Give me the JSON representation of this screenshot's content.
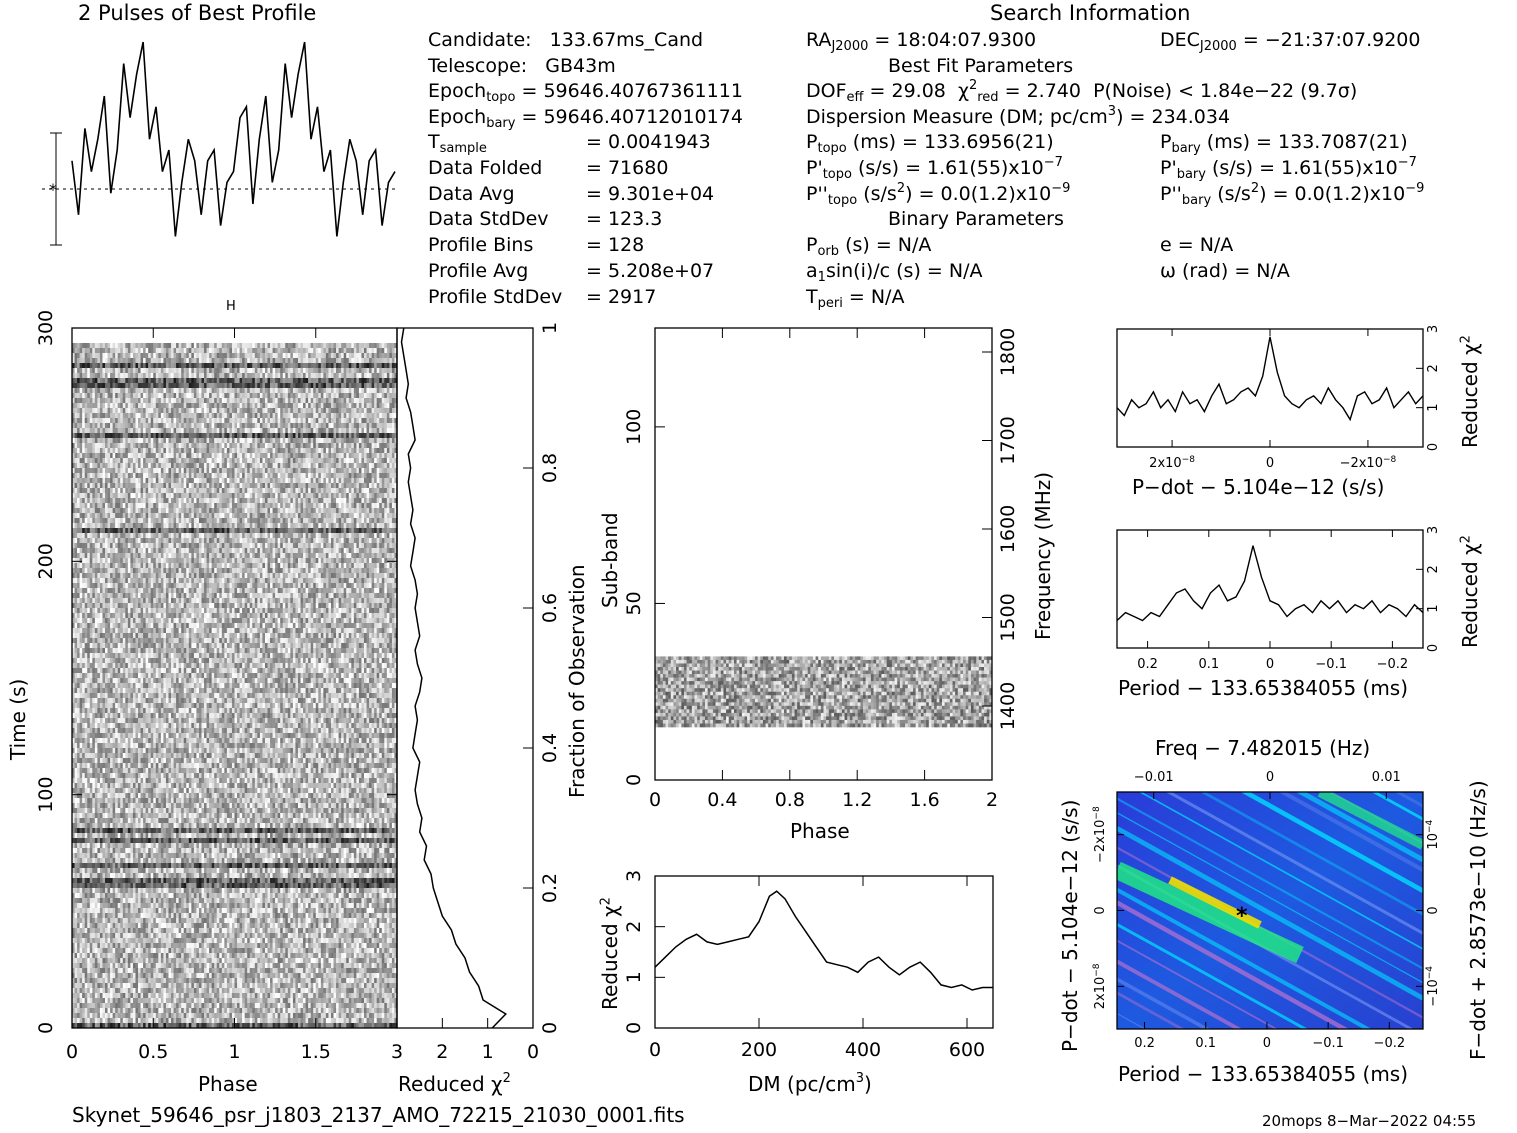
{
  "header": {
    "profile_title": "2 Pulses of Best Profile",
    "search_title": "Search Information",
    "best_fit_title": "Best Fit Parameters",
    "binary_title": "Binary Parameters"
  },
  "info_left": [
    {
      "label": "Candidate:",
      "value": "133.67ms_Cand"
    },
    {
      "label": "Telescope:",
      "value": "GB43m"
    },
    {
      "label": "Epoch",
      "sub": "topo",
      "value": "= 59646.40767361111"
    },
    {
      "label": "Epoch",
      "sub": "bary",
      "value": "= 59646.40712010174"
    },
    {
      "label": "T",
      "sub": "sample",
      "value": "=   0.0041943"
    },
    {
      "label": "Data Folded",
      "value": "=   71680"
    },
    {
      "label": "Data Avg",
      "value": "=   9.301e+04"
    },
    {
      "label": "Data StdDev",
      "value": "=   123.3"
    },
    {
      "label": "Profile Bins",
      "value": "=   128"
    },
    {
      "label": "Profile Avg",
      "value": "=   5.208e+07"
    },
    {
      "label": "Profile StdDev",
      "value": "=   2917"
    }
  ],
  "info_mid": {
    "ra": "RA",
    "ra_sub": "J2000",
    "ra_value": "= 18:04:07.9300",
    "dec": "DEC",
    "dec_sub": "J2000",
    "dec_value": "= −21:37:07.9200",
    "dof": "DOF",
    "dof_sub": "eff",
    "dof_value": "= 29.08",
    "chi": "χ",
    "chi_sup": "2",
    "chi_sub": "red",
    "chi_value": "= 2.740",
    "pnoise": "P(Noise) < 1.84e−22   (9.7σ)",
    "dm_line": "Dispersion Measure (DM; pc/cm",
    "dm_sup": "3",
    "dm_value": ") = 234.034",
    "ptopo": "P",
    "ptopo_sub": "topo",
    "ptopo_value": "(ms) =   133.6956(21)",
    "pbary": "P",
    "pbary_sub": "bary",
    "pbary_value": "(ms) =   133.7087(21)",
    "pdtopo": "P'",
    "pdtopo_sub": "topo",
    "pdtopo_value": "(s/s) =   1.61(55)x10",
    "pdtopo_exp": "−7",
    "pdbary": "P'",
    "pdbary_sub": "bary",
    "pdbary_value": "(s/s) =   1.61(55)x10",
    "pdbary_exp": "−7",
    "pddtopo": "P''",
    "pddtopo_sub": "topo",
    "pddtopo_value": "(s/s",
    "pddtopo_tail": ") = 0.0(1.2)x10",
    "pddtopo_exp": "−9",
    "pddbary": "P''",
    "pddbary_sub": "bary",
    "pddbary_value": "(s/s",
    "pddbary_tail": ") = 0.0(1.2)x10",
    "pddbary_exp": "−9",
    "porb": "P",
    "porb_sub": "orb",
    "porb_value": "(s) = N/A",
    "ecc": "e = N/A",
    "a1": "a",
    "a1_sub": "1",
    "a1_value": "sin(i)/c (s) = N/A",
    "omega": "ω (rad) = N/A",
    "tperi": "T",
    "tperi_sub": "peri",
    "tperi_value": "= N/A",
    "sq": "2"
  },
  "footer": {
    "filename": "Skynet_59646_psr_j1803_2137_AMO_72215_21030_0001.fits",
    "stamp": "20mops   8−Mar−2022 04:55"
  },
  "colors": {
    "ink": "#000000",
    "bg": "#ffffff",
    "cmap_low": "#3030c0",
    "cmap_mid": "#00e0ff",
    "cmap_hi": "#f0e000"
  },
  "chart_data": [
    {
      "type": "line",
      "name_key": "profile",
      "title": "2 Pulses of Best Profile",
      "xlim": [
        0,
        2
      ],
      "x": [
        0.0,
        0.04,
        0.08,
        0.12,
        0.16,
        0.2,
        0.24,
        0.28,
        0.32,
        0.36,
        0.4,
        0.44,
        0.48,
        0.52,
        0.56,
        0.6,
        0.64,
        0.68,
        0.72,
        0.76,
        0.8,
        0.84,
        0.88,
        0.92,
        0.96,
        1.0,
        1.04,
        1.08,
        1.12,
        1.16,
        1.2,
        1.24,
        1.28,
        1.32,
        1.36,
        1.4,
        1.44,
        1.48,
        1.52,
        1.56,
        1.6,
        1.64,
        1.68,
        1.72,
        1.76,
        1.8,
        1.84,
        1.88,
        1.92,
        1.96,
        2.0
      ],
      "y": [
        0.45,
        0.2,
        0.6,
        0.4,
        0.55,
        0.75,
        0.3,
        0.5,
        0.9,
        0.65,
        0.85,
        1.0,
        0.55,
        0.7,
        0.4,
        0.5,
        0.1,
        0.35,
        0.55,
        0.45,
        0.2,
        0.45,
        0.5,
        0.15,
        0.35,
        0.4,
        0.65,
        0.7,
        0.25,
        0.55,
        0.75,
        0.35,
        0.5,
        0.9,
        0.65,
        0.85,
        1.0,
        0.55,
        0.7,
        0.4,
        0.5,
        0.1,
        0.35,
        0.55,
        0.45,
        0.2,
        0.45,
        0.5,
        0.15,
        0.35,
        0.4
      ]
    },
    {
      "type": "heatmap",
      "name_key": "time_phase",
      "xlabel": "Phase",
      "ylabel": "Time (s)",
      "xlim": [
        0,
        2
      ],
      "ylim": [
        0,
        300
      ],
      "x_ticks": [
        "0",
        "0.5",
        "1",
        "1.5"
      ],
      "y_ticks": [
        "0",
        "100",
        "200",
        "300"
      ]
    },
    {
      "type": "line",
      "name_key": "time_chi",
      "xlabel": "Reduced χ",
      "xlabel_sup": "2",
      "ylabel": "Fraction of Observation",
      "xlim": [
        3,
        0
      ],
      "ylim": [
        0,
        1
      ],
      "x_ticks": [
        "3",
        "2",
        "1",
        "0"
      ],
      "y_ticks": [
        "0",
        "0.2",
        "0.4",
        "0.6",
        "0.8",
        "1"
      ],
      "frac": [
        0.0,
        0.02,
        0.04,
        0.06,
        0.08,
        0.1,
        0.12,
        0.14,
        0.16,
        0.18,
        0.2,
        0.22,
        0.24,
        0.26,
        0.28,
        0.3,
        0.32,
        0.34,
        0.36,
        0.38,
        0.4,
        0.42,
        0.44,
        0.46,
        0.48,
        0.5,
        0.52,
        0.54,
        0.56,
        0.58,
        0.6,
        0.62,
        0.64,
        0.66,
        0.68,
        0.7,
        0.72,
        0.74,
        0.76,
        0.78,
        0.8,
        0.82,
        0.84,
        0.86,
        0.88,
        0.9,
        0.92,
        0.94,
        0.96,
        0.98,
        1.0
      ],
      "chi": [
        0.9,
        0.6,
        1.1,
        1.2,
        1.4,
        1.5,
        1.7,
        1.8,
        2.0,
        2.1,
        2.2,
        2.25,
        2.4,
        2.35,
        2.5,
        2.45,
        2.55,
        2.6,
        2.55,
        2.5,
        2.65,
        2.6,
        2.55,
        2.6,
        2.5,
        2.45,
        2.55,
        2.6,
        2.5,
        2.55,
        2.6,
        2.55,
        2.6,
        2.7,
        2.65,
        2.6,
        2.7,
        2.65,
        2.7,
        2.75,
        2.7,
        2.75,
        2.6,
        2.65,
        2.7,
        2.8,
        2.75,
        2.8,
        2.85,
        2.9,
        2.85
      ]
    },
    {
      "type": "heatmap",
      "name_key": "subband_phase",
      "xlabel": "Phase",
      "ylabel": "Sub-band",
      "ylabel2": "Frequency (MHz)",
      "xlim": [
        0,
        2
      ],
      "ylim": [
        0,
        128
      ],
      "x_ticks": [
        "0",
        "0.4",
        "0.8",
        "1.2",
        "1.6",
        "2"
      ],
      "y_ticks": [
        "0",
        "50",
        "100"
      ],
      "y2_ticks": [
        "1400",
        "1500",
        "1600",
        "1700",
        "1800"
      ],
      "band": [
        15,
        35
      ]
    },
    {
      "type": "line",
      "name_key": "dm_curve",
      "xlabel": "DM (pc/cm",
      "xlabel_sup": "3",
      "xlabel_tail": ")",
      "ylabel": "Reduced χ",
      "ylabel_sup": "2",
      "xlim": [
        0,
        650
      ],
      "ylim": [
        0,
        3
      ],
      "x_ticks": [
        "0",
        "200",
        "400",
        "600"
      ],
      "y_ticks": [
        "0",
        "1",
        "2",
        "3"
      ],
      "x": [
        0,
        20,
        40,
        60,
        80,
        100,
        120,
        140,
        160,
        180,
        200,
        220,
        234,
        250,
        270,
        290,
        310,
        330,
        350,
        370,
        390,
        410,
        430,
        450,
        470,
        490,
        510,
        530,
        550,
        570,
        590,
        610,
        630,
        650
      ],
      "y": [
        1.2,
        1.4,
        1.6,
        1.75,
        1.85,
        1.7,
        1.65,
        1.7,
        1.75,
        1.8,
        2.1,
        2.6,
        2.7,
        2.55,
        2.2,
        1.9,
        1.6,
        1.3,
        1.25,
        1.2,
        1.1,
        1.3,
        1.4,
        1.2,
        1.05,
        1.2,
        1.3,
        1.1,
        0.85,
        0.8,
        0.85,
        0.75,
        0.8,
        0.8
      ]
    },
    {
      "type": "line",
      "name_key": "pdot_curve",
      "xlabel": "P−dot − 5.104e−12 (s/s)",
      "ylabel": "Reduced χ",
      "ylabel_sup": "2",
      "ylim": [
        0,
        3
      ],
      "x_ticks": [
        "2x10",
        "0",
        "−2x10"
      ],
      "x_tick_exp": "−8",
      "y_ticks": [
        "0",
        "1",
        "2",
        "3"
      ],
      "y": [
        1.0,
        0.8,
        1.2,
        1.0,
        1.1,
        1.4,
        1.0,
        1.2,
        0.9,
        1.4,
        1.1,
        1.2,
        0.9,
        1.3,
        1.6,
        1.1,
        1.2,
        1.4,
        1.5,
        1.3,
        1.8,
        2.8,
        1.9,
        1.3,
        1.1,
        1.0,
        1.2,
        1.3,
        1.1,
        1.5,
        1.2,
        1.0,
        0.7,
        1.3,
        1.4,
        1.1,
        1.2,
        1.5,
        1.0,
        1.2,
        1.4,
        1.1,
        1.3
      ]
    },
    {
      "type": "line",
      "name_key": "period_curve",
      "xlabel": "Period − 133.65384055 (ms)",
      "ylabel": "Reduced χ",
      "ylabel_sup": "2",
      "ylim": [
        0,
        3
      ],
      "x_ticks": [
        "0.2",
        "0.1",
        "0",
        "−0.1",
        "−0.2"
      ],
      "y_ticks": [
        "0",
        "1",
        "2",
        "3"
      ],
      "y": [
        0.7,
        0.9,
        0.8,
        0.7,
        0.9,
        0.8,
        1.1,
        1.4,
        1.5,
        1.2,
        1.0,
        1.4,
        1.6,
        1.2,
        1.3,
        1.7,
        2.6,
        1.8,
        1.2,
        1.1,
        0.8,
        1.0,
        1.1,
        0.9,
        1.2,
        1.0,
        1.2,
        0.9,
        1.1,
        1.0,
        1.2,
        0.9,
        1.1,
        1.0,
        0.8,
        1.1,
        0.9
      ]
    },
    {
      "type": "heatmap",
      "name_key": "ppdot_map",
      "title": "Freq − 7.482015 (Hz)",
      "xlabel": "Period − 133.65384055 (ms)",
      "ylabel": "P−dot − 5.104e−12 (s/s)",
      "ylabel2": "F−dot + 2.8573e−10 (Hz/s)",
      "x_ticks": [
        "0.2",
        "0.1",
        "0",
        "−0.1",
        "−0.2"
      ],
      "top_ticks": [
        "−0.01",
        "0",
        "0.01"
      ],
      "y_ticks": [
        "2x10",
        "0",
        "−2x10"
      ],
      "y_tick_exp": "−8",
      "y2_ticks": [
        "−10",
        "0",
        "10"
      ],
      "y2_tick_exp": "−4",
      "marker": "*"
    }
  ]
}
